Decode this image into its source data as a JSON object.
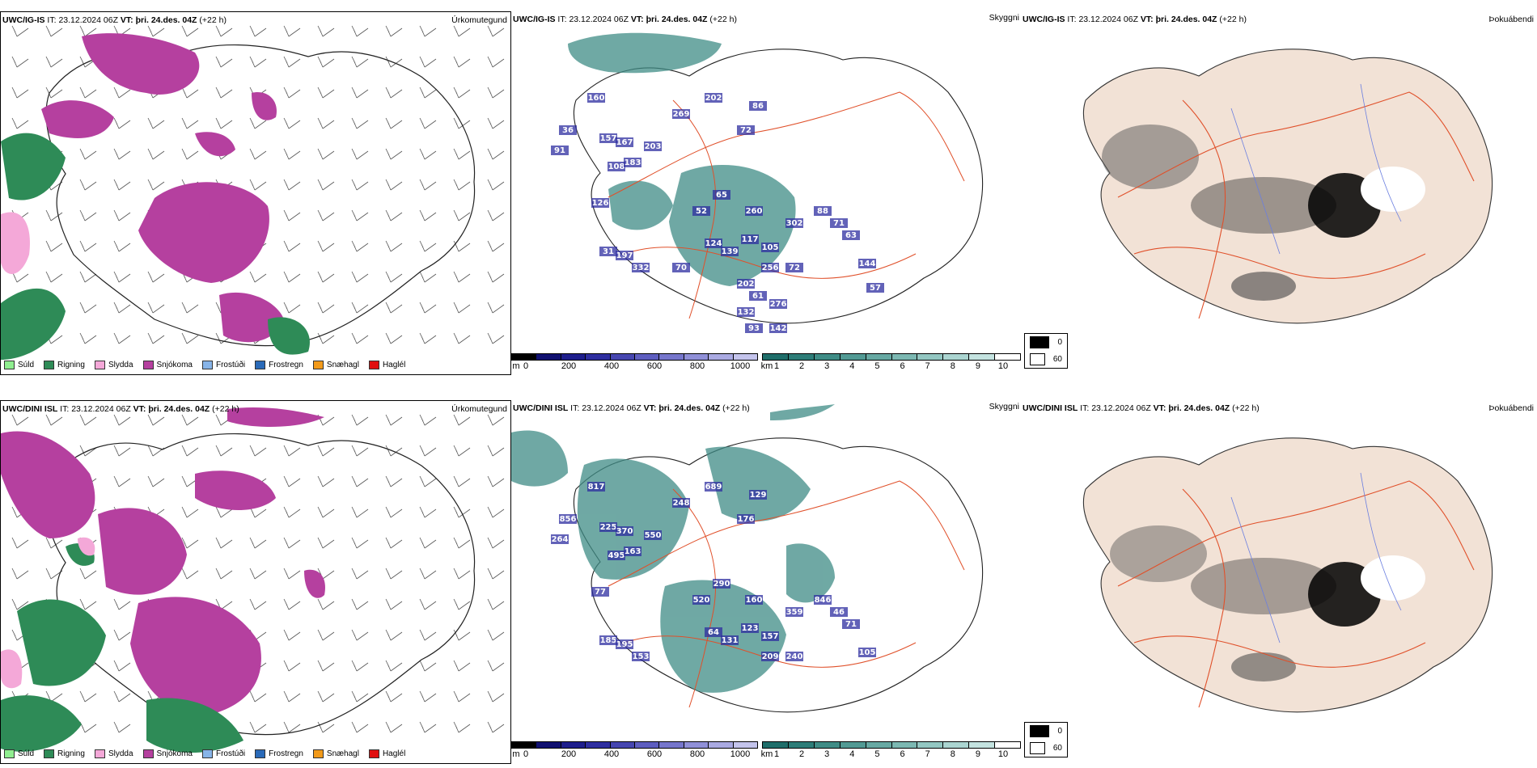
{
  "rows": [
    {
      "model": "UWC/IG-IS",
      "it_label": "IT:",
      "it_value": "23.12.2024 06Z",
      "vt_label": "VT:",
      "vt_value": "þri. 24.des. 04Z",
      "lead": "(+22 h)",
      "precip_type_label": "Úrkomutegund",
      "cloud_label": "Skyggni",
      "fog_label": "Þokuábendi"
    },
    {
      "model": "UWC/DINI ISL",
      "it_label": "IT:",
      "it_value": "23.12.2024 06Z",
      "vt_label": "VT:",
      "vt_value": "þri. 24.des. 04Z",
      "lead": "(+22 h)",
      "precip_type_label": "Úrkomutegund",
      "cloud_label": "Skyggni",
      "fog_label": "Þokuábendi"
    }
  ],
  "precip_legend": [
    {
      "label": "Súld",
      "color": "#90ee90"
    },
    {
      "label": "Rigning",
      "color": "#2e8b57"
    },
    {
      "label": "Slydda",
      "color": "#f4a8d8"
    },
    {
      "label": "Snjókoma",
      "color": "#b5409f"
    },
    {
      "label": "Frostúði",
      "color": "#87b4e8"
    },
    {
      "label": "Frostregn",
      "color": "#2a6ab8"
    },
    {
      "label": "Snæhagl",
      "color": "#f29a1a"
    },
    {
      "label": "Haglél",
      "color": "#e01010"
    }
  ],
  "cloud_base_bar": {
    "unit": "m",
    "ticks": [
      "0",
      "200",
      "400",
      "600",
      "800",
      "1000"
    ],
    "colors": [
      "#000000",
      "#101070",
      "#1e1e8c",
      "#2e2ea0",
      "#4646b0",
      "#5e5ec0",
      "#7676cc",
      "#9090d8",
      "#aaaae2",
      "#c4c4ec"
    ]
  },
  "visibility_bar": {
    "unit": "km",
    "ticks": [
      "1",
      "2",
      "3",
      "4",
      "5",
      "6",
      "7",
      "8",
      "9",
      "10"
    ],
    "colors": [
      "#1f6e6a",
      "#2d7d78",
      "#3f8c86",
      "#529a94",
      "#67a9a3",
      "#7cb8b2",
      "#93c7c2",
      "#abd5d1",
      "#c4e3e0",
      "#ffffff"
    ]
  },
  "fog_legend": [
    {
      "label": "0",
      "color": "#000000"
    },
    {
      "label": "60",
      "color": "#ffffff"
    }
  ],
  "cloud_values_top": [
    "36",
    "91",
    "160",
    "157",
    "167",
    "108",
    "183",
    "203",
    "269",
    "202",
    "72",
    "86",
    "65",
    "52",
    "126",
    "260",
    "302",
    "88",
    "71",
    "63",
    "124",
    "139",
    "117",
    "105",
    "31",
    "197",
    "256",
    "72",
    "144",
    "332",
    "70",
    "202",
    "61",
    "276",
    "132",
    "142",
    "93",
    "57"
  ],
  "cloud_values_bottom": [
    "856",
    "264",
    "817",
    "225",
    "370",
    "495",
    "163",
    "550",
    "248",
    "689",
    "176",
    "129",
    "290",
    "520",
    "77",
    "160",
    "359",
    "846",
    "46",
    "71",
    "64",
    "131",
    "123",
    "157",
    "185",
    "195",
    "209",
    "240",
    "105",
    "153"
  ],
  "colors": {
    "snow": "#b5409f",
    "rain": "#2e8b57",
    "sleet": "#f4a8d8",
    "vis": "#3f8c86",
    "cbase": "#2e2ea0",
    "roads": "#e0502a",
    "land_fog": "#f2e2d6"
  }
}
